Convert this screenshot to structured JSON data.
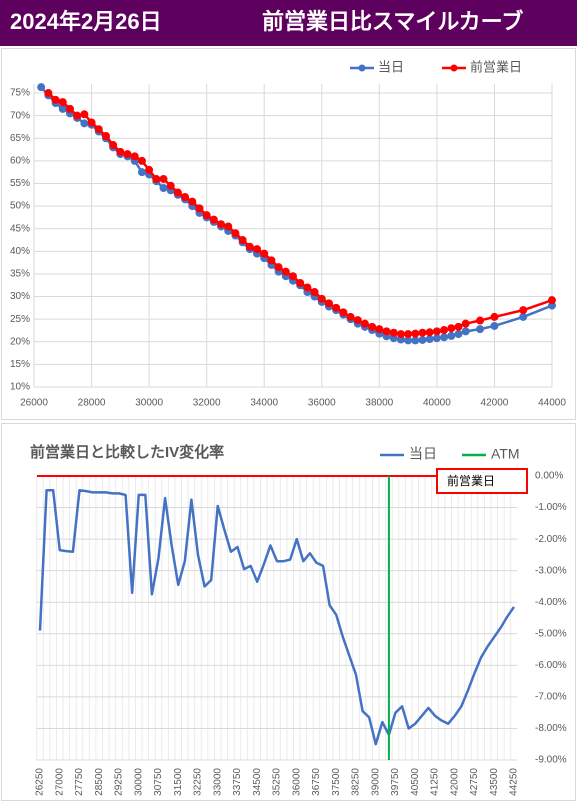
{
  "header": {
    "date": "2024年2月26日",
    "title": "前営業日比スマイルカーブ"
  },
  "chart_data": [
    {
      "type": "line",
      "x": [
        26250,
        26500,
        26750,
        27000,
        27250,
        27500,
        27750,
        28000,
        28250,
        28500,
        28750,
        29000,
        29250,
        29500,
        29750,
        30000,
        30250,
        30500,
        30750,
        31000,
        31250,
        31500,
        31750,
        32000,
        32250,
        32500,
        32750,
        33000,
        33250,
        33500,
        33750,
        34000,
        34250,
        34500,
        34750,
        35000,
        35250,
        35500,
        35750,
        36000,
        36250,
        36500,
        36750,
        37000,
        37250,
        37500,
        37750,
        38000,
        38250,
        38500,
        38750,
        39000,
        39250,
        39500,
        39750,
        40000,
        40250,
        40500,
        40750,
        41000,
        41500,
        42000,
        43000,
        44000
      ],
      "series": [
        {
          "name": "当日",
          "color": "#4472c4",
          "values": [
            76.3,
            74.5,
            72.8,
            71.5,
            70.5,
            69.5,
            68.3,
            68,
            66.5,
            65,
            63,
            61.5,
            61,
            60,
            57.5,
            57,
            55.5,
            54,
            53.5,
            52.5,
            51.5,
            50,
            48.5,
            47.5,
            46.5,
            45.5,
            44.5,
            43.5,
            42,
            40.5,
            39.5,
            38.5,
            37,
            35.5,
            34.5,
            33.5,
            32.5,
            31,
            30,
            28.8,
            27.8,
            27,
            26,
            25,
            24,
            23.3,
            22.6,
            21.8,
            21.2,
            20.8,
            20.5,
            20.3,
            20.3,
            20.4,
            20.6,
            20.8,
            21,
            21.3,
            21.7,
            22.3,
            22.8,
            23.5,
            25.5,
            28
          ]
        },
        {
          "name": "前営業日",
          "color": "#ff0000",
          "values": [
            null,
            75,
            73.5,
            73,
            71.5,
            70,
            70.3,
            68.5,
            67,
            65.5,
            63.5,
            62,
            61.5,
            61,
            60,
            58,
            56,
            56,
            54.5,
            53,
            52,
            51,
            49.5,
            48,
            47,
            46,
            45.5,
            44,
            42.5,
            41,
            40.5,
            39.5,
            38,
            36.5,
            35.5,
            34.5,
            33,
            32,
            31,
            29.5,
            28.5,
            27.5,
            26.5,
            25.5,
            24.8,
            24,
            23.3,
            22.8,
            22.3,
            22,
            21.7,
            21.7,
            21.8,
            22,
            22.1,
            22.3,
            22.6,
            23,
            23.3,
            24,
            24.7,
            25.5,
            27,
            29.2
          ]
        }
      ],
      "xlim": [
        26000,
        44000
      ],
      "xticks": [
        26000,
        28000,
        30000,
        32000,
        34000,
        36000,
        38000,
        40000,
        42000,
        44000
      ],
      "ylim": [
        10,
        77
      ],
      "yticks": [
        {
          "value": 10,
          "label": "10%"
        },
        {
          "value": 15,
          "label": "15%"
        },
        {
          "value": 20,
          "label": "20%"
        },
        {
          "value": 25,
          "label": "25%"
        },
        {
          "value": 30,
          "label": "30%"
        },
        {
          "value": 35,
          "label": "35%"
        },
        {
          "value": 40,
          "label": "40%"
        },
        {
          "value": 45,
          "label": "45%"
        },
        {
          "value": 50,
          "label": "50%"
        },
        {
          "value": 55,
          "label": "55%"
        },
        {
          "value": 60,
          "label": "60%"
        },
        {
          "value": 65,
          "label": "65%"
        },
        {
          "value": 70,
          "label": "70%"
        },
        {
          "value": 75,
          "label": "75%"
        }
      ],
      "grid": true,
      "markers": true,
      "legend": "top-right"
    },
    {
      "type": "line",
      "title": "前営業日と比較したIV変化率",
      "categories": [
        "26250",
        null,
        null,
        "27000",
        null,
        null,
        "27750",
        null,
        null,
        "28500",
        null,
        null,
        "29250",
        null,
        null,
        "30000",
        null,
        null,
        "30750",
        null,
        null,
        "31500",
        null,
        null,
        "32250",
        null,
        null,
        "33000",
        null,
        null,
        "33750",
        null,
        null,
        "34500",
        null,
        null,
        "35250",
        null,
        null,
        "36000",
        null,
        null,
        "36750",
        null,
        null,
        "37500",
        null,
        null,
        "38250",
        null,
        null,
        "39000",
        null,
        null,
        "39750",
        null,
        null,
        "40500",
        null,
        null,
        "41250",
        null,
        null,
        "42000",
        null,
        null,
        "42750",
        null,
        null,
        "43500",
        null,
        null,
        "44250"
      ],
      "series": [
        {
          "name": "当日",
          "color": "#4472c4",
          "values": [
            -4.9,
            -0.45,
            -0.45,
            -2.35,
            -2.38,
            -2.4,
            -0.45,
            -0.48,
            -0.52,
            -0.52,
            -0.52,
            -0.55,
            -0.55,
            -0.6,
            -3.7,
            -0.6,
            -0.6,
            -3.75,
            -2.6,
            -0.7,
            -2.2,
            -3.45,
            -2.7,
            -0.75,
            -2.5,
            -3.5,
            -3.3,
            -0.95,
            -1.7,
            -2.4,
            -2.25,
            -2.95,
            -2.85,
            -3.35,
            -2.8,
            -2.2,
            -2.7,
            -2.7,
            -2.65,
            -2,
            -2.7,
            -2.45,
            -2.75,
            -2.85,
            -4.1,
            -4.4,
            -5.1,
            -5.7,
            -6.3,
            -7.45,
            -7.65,
            -8.5,
            -7.8,
            -8.2,
            -7.5,
            -7.3,
            -8,
            -7.85,
            -7.6,
            -7.35,
            -7.6,
            -7.75,
            -7.85,
            -7.6,
            -7.3,
            -6.8,
            -6.25,
            -5.75,
            -5.4,
            -5.1,
            -4.8,
            -4.45,
            -4.15
          ]
        },
        {
          "name": "ATM",
          "color": "#00b050",
          "kind": "vline",
          "values": [
            null,
            null,
            null,
            null,
            null,
            null,
            null,
            null,
            null,
            null,
            null,
            null,
            null,
            null,
            null,
            null,
            null,
            null,
            null,
            null,
            null,
            null,
            null,
            null,
            null,
            null,
            null,
            null,
            null,
            null,
            null,
            null,
            null,
            null,
            null,
            null,
            null,
            null,
            null,
            null,
            null,
            null,
            null,
            null,
            null,
            null,
            null,
            null,
            null,
            null,
            null,
            null,
            null,
            -9,
            null,
            null,
            null,
            null,
            null,
            null,
            null,
            null,
            null,
            null,
            null,
            null,
            null,
            null,
            null,
            null,
            null,
            null,
            null
          ]
        }
      ],
      "reference_line": {
        "label": "前営業日",
        "value": 0,
        "color": "#ff0000"
      },
      "y2lim": [
        -9,
        0
      ],
      "y2ticks": [
        {
          "value": 0,
          "label": "0.00%"
        },
        {
          "value": -1,
          "label": "-1.00%"
        },
        {
          "value": -2,
          "label": "-2.00%"
        },
        {
          "value": -3,
          "label": "-3.00%"
        },
        {
          "value": -4,
          "label": "-4.00%"
        },
        {
          "value": -5,
          "label": "-5.00%"
        },
        {
          "value": -6,
          "label": "-6.00%"
        },
        {
          "value": -7,
          "label": "-7.00%"
        },
        {
          "value": -8,
          "label": "-8.00%"
        },
        {
          "value": -9,
          "label": "-9.00%"
        }
      ],
      "grid": true,
      "legend": "top-right"
    }
  ]
}
